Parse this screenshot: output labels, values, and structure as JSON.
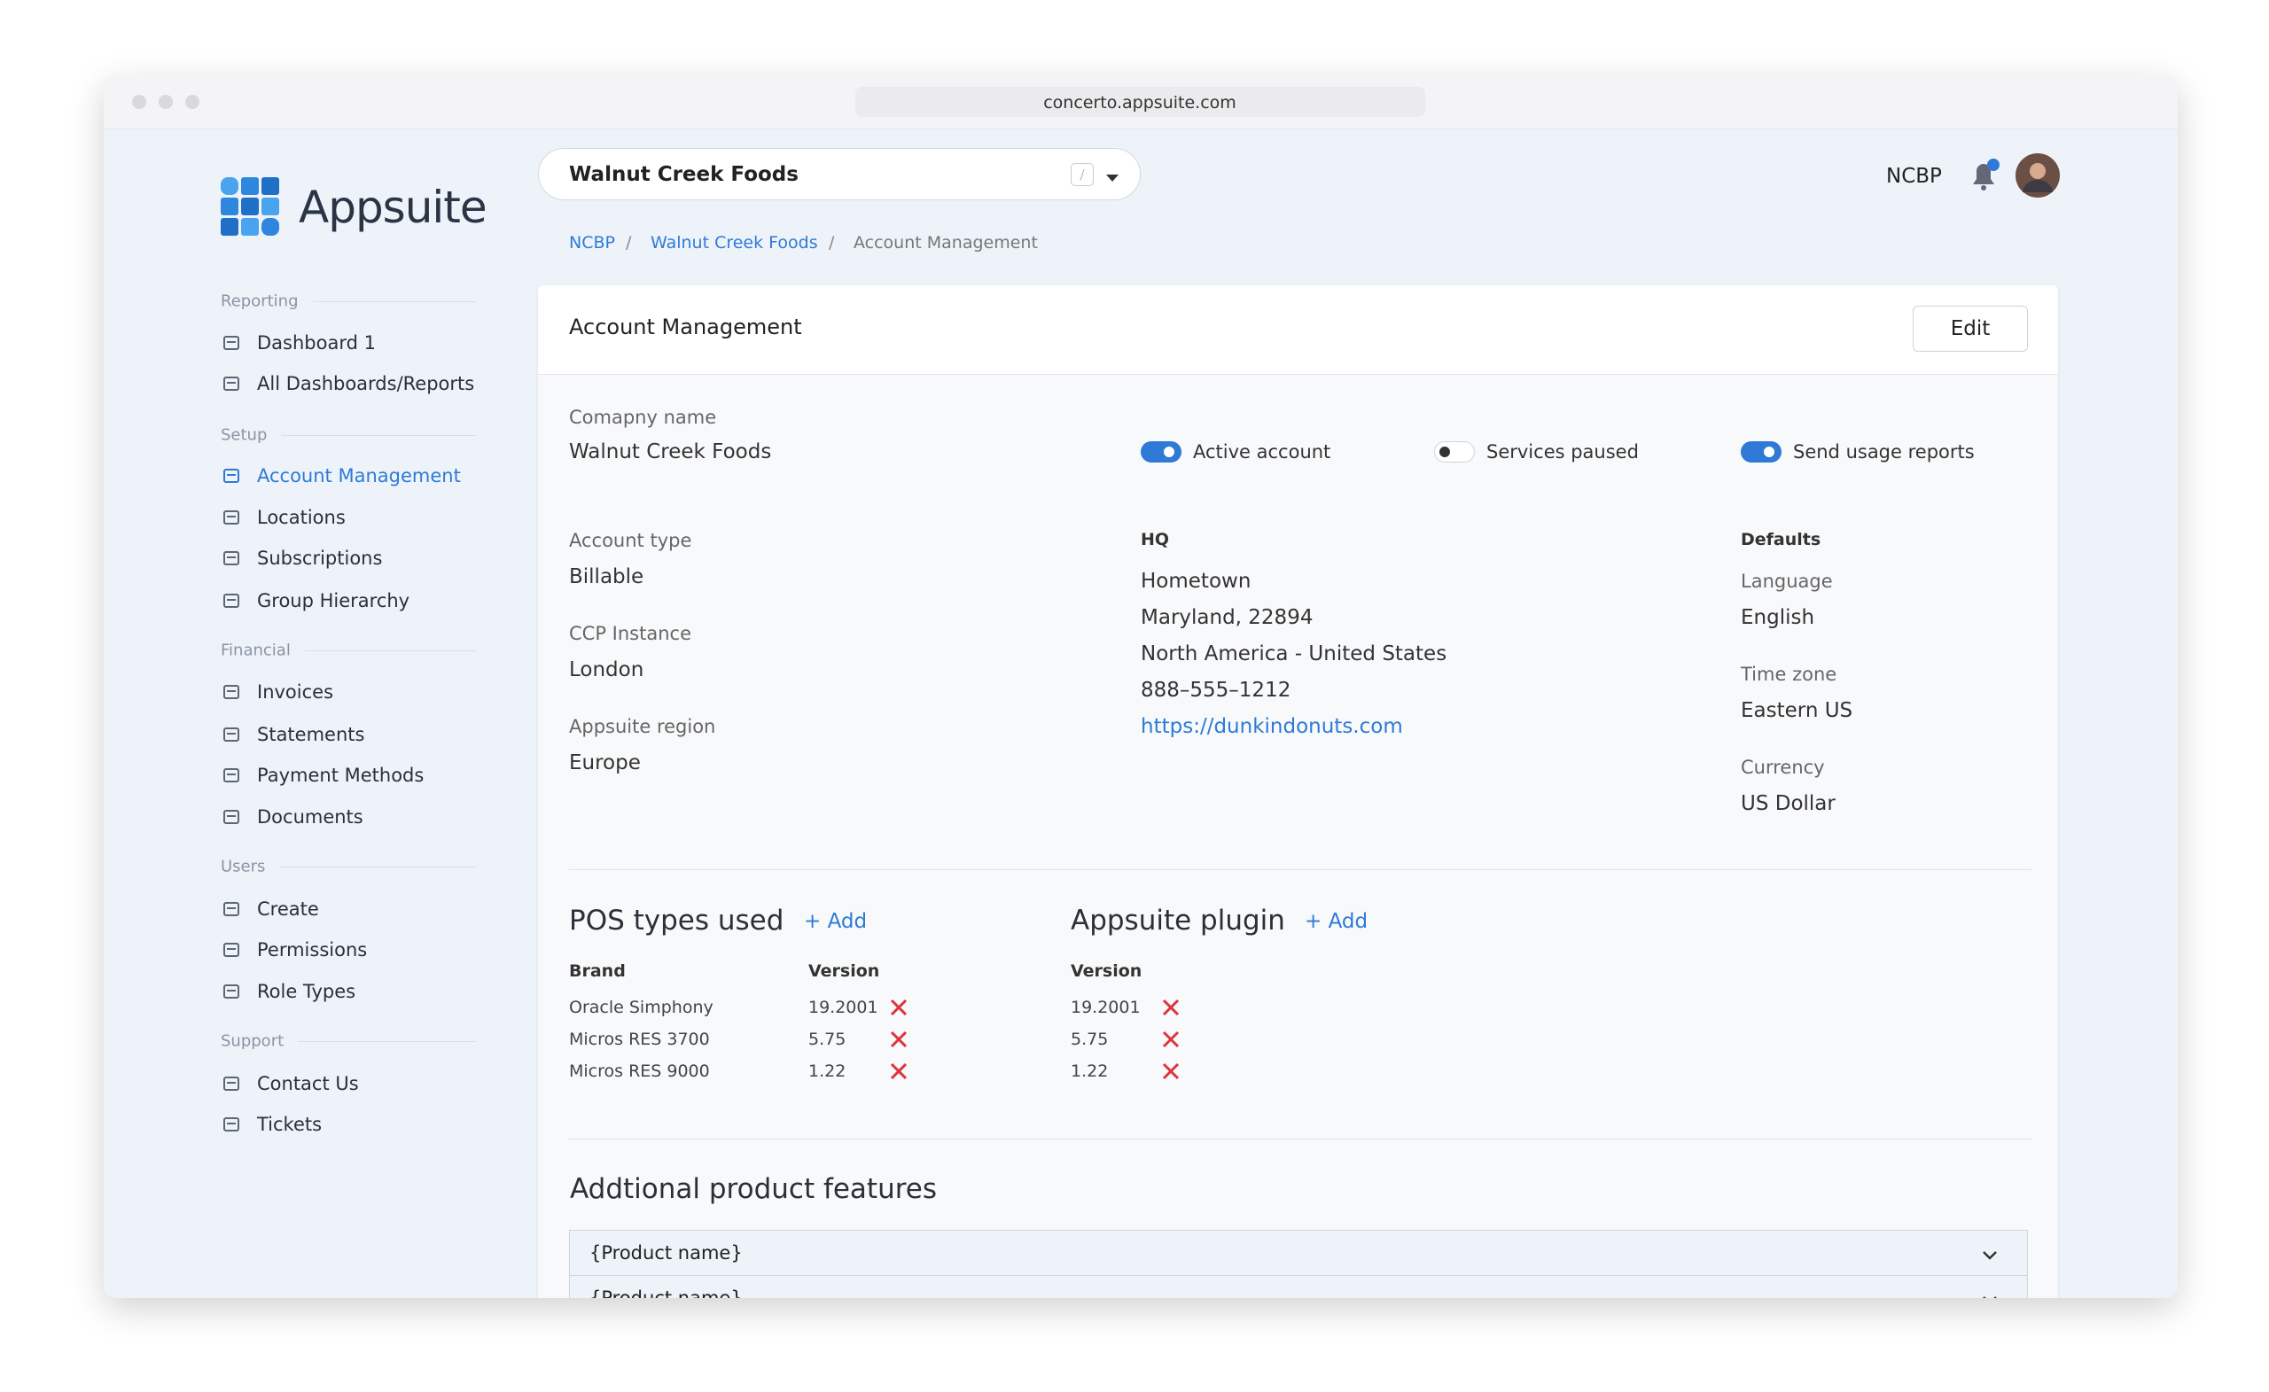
{
  "browser": {
    "url": "concerto.appsuite.com"
  },
  "brand": {
    "name": "Appsuite"
  },
  "sidebar": {
    "sections": [
      {
        "label": "Reporting",
        "items": [
          "Dashboard 1",
          "All Dashboards/Reports"
        ]
      },
      {
        "label": "Setup",
        "items": [
          "Account Management",
          "Locations",
          "Subscriptions",
          "Group Hierarchy"
        ]
      },
      {
        "label": "Financial",
        "items": [
          "Invoices",
          "Statements",
          "Payment Methods",
          "Documents"
        ]
      },
      {
        "label": "Users",
        "items": [
          "Create",
          "Permissions",
          "Role Types"
        ]
      },
      {
        "label": "Support",
        "items": [
          "Contact Us",
          "Tickets"
        ]
      }
    ],
    "active": "Account Management"
  },
  "topbar": {
    "account": "Walnut Creek Foods",
    "shortcut": "/",
    "user": "NCBP"
  },
  "breadcrumb": [
    "NCBP",
    "Walnut Creek Foods",
    "Account Management"
  ],
  "card": {
    "title": "Account Management",
    "edit": "Edit",
    "company": {
      "label": "Comapny name",
      "value": "Walnut Creek Foods"
    },
    "toggles": [
      {
        "label": "Active account",
        "on": true
      },
      {
        "label": "Services paused",
        "on": false
      },
      {
        "label": "Send usage reports",
        "on": true
      }
    ],
    "left": [
      {
        "label": "Account type",
        "value": "Billable"
      },
      {
        "label": "CCP Instance",
        "value": "London"
      },
      {
        "label": "Appsuite region",
        "value": "Europe"
      }
    ],
    "hq": {
      "label": "HQ",
      "lines": [
        "Hometown",
        "Maryland, 22894",
        "North America - United States",
        "888–555–1212"
      ],
      "link": "https://dunkindonuts.com"
    },
    "defaults": {
      "label": "Defaults",
      "items": [
        {
          "label": "Language",
          "value": "English"
        },
        {
          "label": "Time zone",
          "value": "Eastern US"
        },
        {
          "label": "Currency",
          "value": "US Dollar"
        }
      ]
    },
    "pos": {
      "title": "POS types used",
      "add": "+ Add",
      "headers": [
        "Brand",
        "Version"
      ],
      "rows": [
        [
          "Oracle Simphony",
          "19.2001"
        ],
        [
          "Micros RES 3700",
          "5.75"
        ],
        [
          "Micros RES 9000",
          "1.22"
        ]
      ]
    },
    "plugin": {
      "title": "Appsuite plugin",
      "add": "+ Add",
      "header": "Version",
      "rows": [
        "19.2001",
        "5.75",
        "1.22"
      ]
    },
    "features": {
      "title": "Addtional product features",
      "items": [
        "{Product name}",
        "{Product name}"
      ]
    }
  }
}
